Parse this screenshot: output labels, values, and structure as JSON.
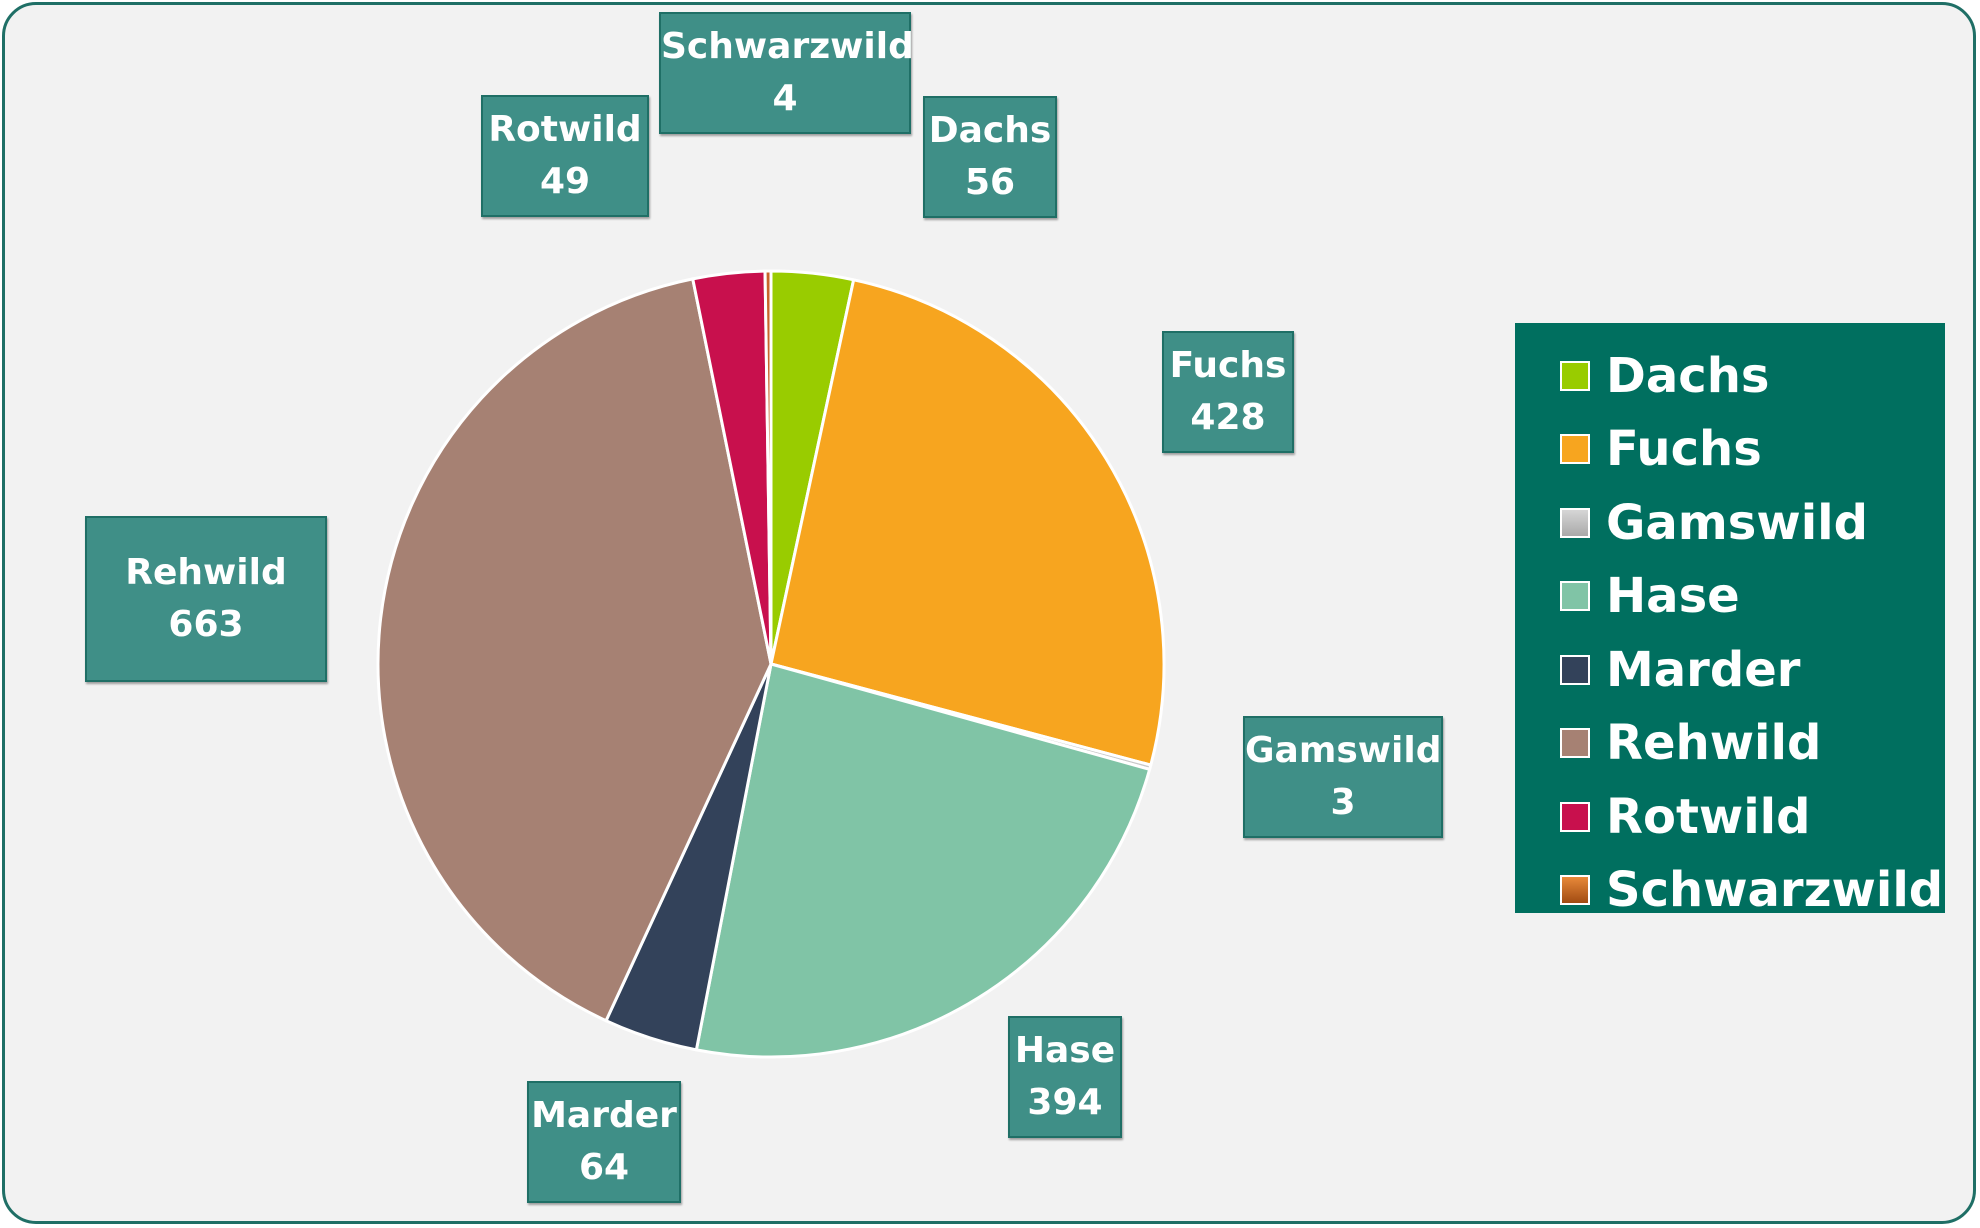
{
  "chart_data": {
    "type": "pie",
    "categories": [
      "Dachs",
      "Fuchs",
      "Gamswild",
      "Hase",
      "Marder",
      "Rehwild",
      "Rotwild",
      "Schwarzwild"
    ],
    "values": [
      56,
      428,
      3,
      394,
      64,
      663,
      49,
      4
    ],
    "colors": [
      "#99cc00",
      "#f7a51f",
      "#c8c8c8",
      "#80c4a6",
      "#33425a",
      "#a68173",
      "#c8104d",
      "#c8642a"
    ],
    "legend_position": "right",
    "data_labels": [
      {
        "name": "Dachs",
        "value": "56"
      },
      {
        "name": "Fuchs",
        "value": "428"
      },
      {
        "name": "Gamswild",
        "value": "3"
      },
      {
        "name": "Hase",
        "value": "394"
      },
      {
        "name": "Marder",
        "value": "64"
      },
      {
        "name": "Rehwild",
        "value": "663"
      },
      {
        "name": "Rotwild",
        "value": "49"
      },
      {
        "name": "Schwarzwild",
        "value": "4"
      }
    ]
  }
}
